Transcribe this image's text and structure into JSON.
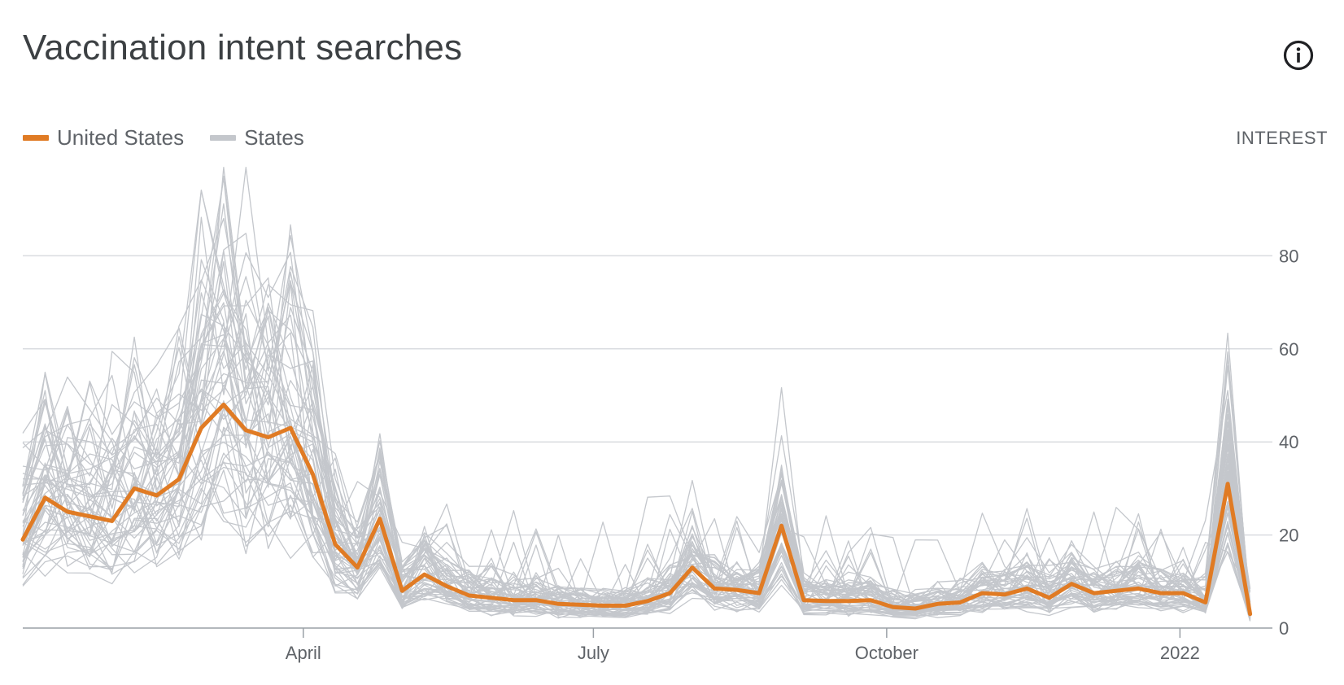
{
  "header": {
    "title": "Vaccination intent searches",
    "info_icon": "info-icon"
  },
  "legend": [
    {
      "label": "United States",
      "color": "#e07b24"
    },
    {
      "label": "States",
      "color": "#c4c7cc"
    }
  ],
  "chart_data": {
    "type": "line",
    "ylabel": "INTEREST",
    "ylim": [
      0,
      100
    ],
    "yticks": [
      0,
      20,
      40,
      60,
      80
    ],
    "x_range": [
      "2021-01-03",
      "2022-01-30"
    ],
    "xticks": [
      {
        "label": "April",
        "date": "2021-04-01"
      },
      {
        "label": "July",
        "date": "2021-07-01"
      },
      {
        "label": "October",
        "date": "2021-10-01"
      },
      {
        "label": "2022",
        "date": "2022-01-01"
      }
    ],
    "grid": true,
    "series": [
      {
        "name": "United States",
        "color": "#e07b24",
        "start_date": "2021-01-03",
        "interval_days": 7,
        "values": [
          19,
          28,
          25,
          24,
          23,
          30,
          28.5,
          32,
          43,
          48,
          42.5,
          41,
          43,
          33,
          18,
          13,
          23.5,
          8,
          11.5,
          9,
          7,
          6.5,
          6,
          6,
          5.2,
          5,
          4.8,
          4.8,
          5.8,
          7.5,
          13,
          8.5,
          8.2,
          7.5,
          22,
          6,
          5.8,
          5.8,
          6,
          4.5,
          4.2,
          5.2,
          5.5,
          7.5,
          7.2,
          8.5,
          6.5,
          9.5,
          7.5,
          8,
          8.5,
          7.5,
          7.5,
          5.5,
          31,
          3
        ]
      },
      {
        "name": "States",
        "color": "#c4c7cc",
        "start_date": "2021-01-03",
        "interval_days": 7,
        "base": [
          19,
          28,
          25,
          24,
          23,
          30,
          28.5,
          32,
          43,
          48,
          42.5,
          41,
          43,
          33,
          18,
          13,
          23.5,
          8,
          11.5,
          9,
          7,
          6.5,
          6,
          6,
          5.2,
          5,
          4.8,
          4.8,
          5.8,
          7.5,
          13,
          8.5,
          8.2,
          7.5,
          22,
          6,
          5.8,
          5.8,
          6,
          4.5,
          4.2,
          5.2,
          5.5,
          7.5,
          7.2,
          8.5,
          6.5,
          9.5,
          7.5,
          8,
          8.5,
          7.5,
          7.5,
          5.5,
          31,
          3
        ],
        "count": 52
      }
    ]
  }
}
